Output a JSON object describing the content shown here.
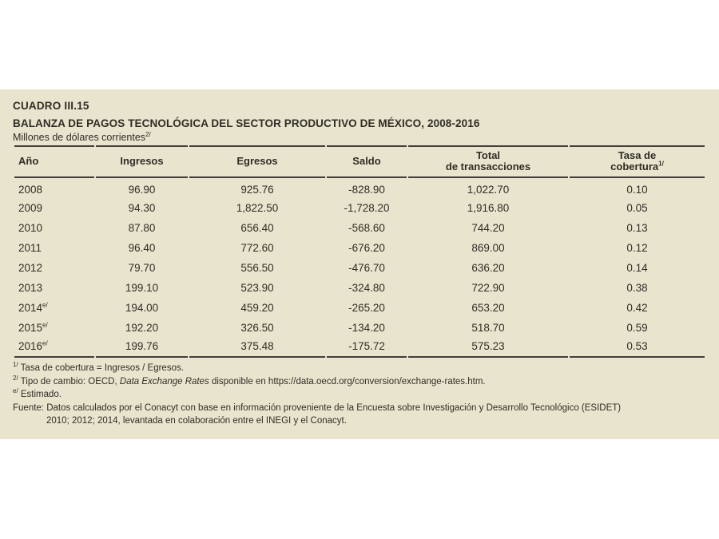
{
  "panel": {
    "cuadro_label": "CUADRO III.15",
    "title": "BALANZA DE PAGOS TECNOLÓGICA DEL SECTOR PRODUCTIVO DE MÉXICO, 2008-2016",
    "subtitle": "Millones de dólares corrientes",
    "subtitle_note": "2/"
  },
  "table": {
    "headers": {
      "anio": "Año",
      "ingresos": "Ingresos",
      "egresos": "Egresos",
      "saldo": "Saldo",
      "total_line1": "Total",
      "total_line2": "de transacciones",
      "tasa_line1": "Tasa de",
      "tasa_line2": "cobertura",
      "tasa_note": "1/"
    },
    "rows": [
      {
        "year": "2008",
        "note": "",
        "ingresos": "96.90",
        "egresos": "925.76",
        "saldo": "-828.90",
        "total": "1,022.70",
        "tasa": "0.10"
      },
      {
        "year": "2009",
        "note": "",
        "ingresos": "94.30",
        "egresos": "1,822.50",
        "saldo": "-1,728.20",
        "total": "1,916.80",
        "tasa": "0.05"
      },
      {
        "year": "2010",
        "note": "",
        "ingresos": "87.80",
        "egresos": "656.40",
        "saldo": "-568.60",
        "total": "744.20",
        "tasa": "0.13"
      },
      {
        "year": "2011",
        "note": "",
        "ingresos": "96.40",
        "egresos": "772.60",
        "saldo": "-676.20",
        "total": "869.00",
        "tasa": "0.12"
      },
      {
        "year": "2012",
        "note": "",
        "ingresos": "79.70",
        "egresos": "556.50",
        "saldo": "-476.70",
        "total": "636.20",
        "tasa": "0.14"
      },
      {
        "year": "2013",
        "note": "",
        "ingresos": "199.10",
        "egresos": "523.90",
        "saldo": "-324.80",
        "total": "722.90",
        "tasa": "0.38"
      },
      {
        "year": "2014",
        "note": "e/",
        "ingresos": "194.00",
        "egresos": "459.20",
        "saldo": "-265.20",
        "total": "653.20",
        "tasa": "0.42"
      },
      {
        "year": "2015",
        "note": "e/",
        "ingresos": "192.20",
        "egresos": "326.50",
        "saldo": "-134.20",
        "total": "518.70",
        "tasa": "0.59"
      },
      {
        "year": "2016",
        "note": "e/",
        "ingresos": "199.76",
        "egresos": "375.48",
        "saldo": "-175.72",
        "total": "575.23",
        "tasa": "0.53"
      }
    ]
  },
  "footnotes": {
    "fn1": {
      "marker": "1/",
      "text": "Tasa de cobertura = Ingresos / Egresos."
    },
    "fn2": {
      "marker": "2/",
      "before": "Tipo de cambio: OECD, ",
      "italic": "Data Exchange Rates",
      "after": " disponible en https://data.oecd.org/conversion/exchange-rates.htm."
    },
    "fn3": {
      "marker": "e/",
      "text": "Estimado."
    },
    "fuente": {
      "line1": "Fuente: Datos calculados por el Conacyt con base en información proveniente de la Encuesta sobre Investigación y Desarrollo Tecnológico (ESIDET)",
      "line2": "2010; 2012; 2014, levantada en colaboración entre el INEGI y el Conacyt."
    }
  },
  "colors": {
    "panel-bg": "#e9e4ce",
    "text": "#2f2d26",
    "rule": "#413f37",
    "page-bg": "#ffffff"
  }
}
